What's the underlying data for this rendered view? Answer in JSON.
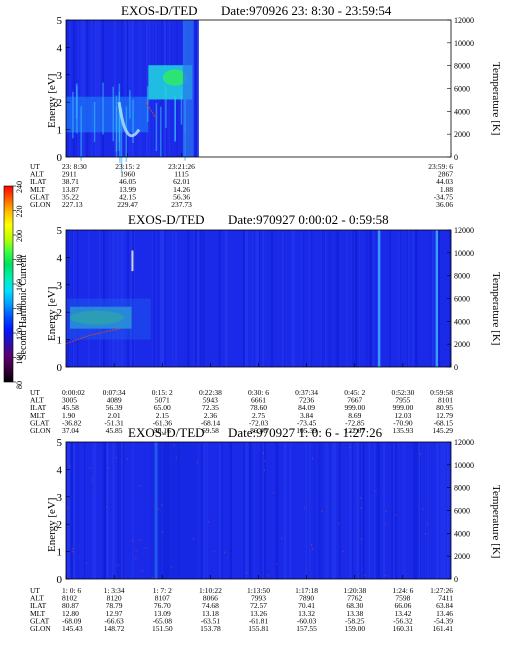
{
  "colorbar": {
    "label": "Second Harmonic Current",
    "ticks": [
      "80",
      "100",
      "120",
      "140",
      "160",
      "180",
      "200",
      "220",
      "240"
    ],
    "stops": [
      "#000000",
      "#3a003a",
      "#5a0070",
      "#2a10b0",
      "#0018ff",
      "#0050ff",
      "#00a0ff",
      "#00e0ff",
      "#00f0b0",
      "#00e060",
      "#40ff40",
      "#c0ff00",
      "#ffff00",
      "#ffc000",
      "#ff6000",
      "#ff0000"
    ]
  },
  "chart_data": [
    {
      "type": "heatmap",
      "title_left": "EXOS-D/TED",
      "title_right": "Date:970926  23: 8:30 - 23:59:54",
      "ylabel": "Energy [eV]",
      "ylim": [
        0,
        5
      ],
      "yticks": [
        "0",
        "1",
        "2",
        "3",
        "4",
        "5"
      ],
      "y2label": "Temperature [K]",
      "y2lim": [
        0,
        12000
      ],
      "y2ticks": [
        "0",
        "2000",
        "4000",
        "6000",
        "8000",
        "10000",
        "12000"
      ],
      "data_end_fraction": 0.345,
      "row_names": [
        "UT",
        "ALT",
        "ILAT",
        "MLT",
        "GLAT",
        "GLON"
      ],
      "columns": [
        {
          "UT": "23: 8:30",
          "ALT": "2911",
          "ILAT": "38.71",
          "MLT": "13.87",
          "GLAT": "35.22",
          "GLON": "227.13"
        },
        {
          "UT": "23:15: 2",
          "ALT": "1960",
          "ILAT": "46.05",
          "MLT": "13.99",
          "GLAT": "42.15",
          "GLON": "229.47"
        },
        {
          "UT": "23:21:26",
          "ALT": "1115",
          "ILAT": "62.01",
          "MLT": "14.26",
          "GLAT": "56.36",
          "GLON": "237.73"
        },
        {
          "UT": "23:59: 6",
          "ALT": "2867",
          "ILAT": "44.03",
          "MLT": "1.88",
          "GLAT": "-34.75",
          "GLON": "36.06"
        }
      ],
      "column_fractions": [
        0,
        0.16,
        0.3,
        1.0
      ]
    },
    {
      "type": "heatmap",
      "title_left": "EXOS-D/TED",
      "title_right": "Date:970927  0:00:02 - 0:59:58",
      "ylabel": "Energy [eV]",
      "ylim": [
        0,
        5
      ],
      "yticks": [
        "0",
        "1",
        "2",
        "3",
        "4",
        "5"
      ],
      "y2label": "Temperature [K]",
      "y2lim": [
        0,
        12000
      ],
      "y2ticks": [
        "0",
        "2000",
        "4000",
        "6000",
        "8000",
        "10000",
        "12000"
      ],
      "data_end_fraction": 1.0,
      "row_names": [
        "UT",
        "ALT",
        "ILAT",
        "MLT",
        "GLAT",
        "GLON"
      ],
      "columns": [
        {
          "UT": "0:00:02",
          "ALT": "3005",
          "ILAT": "45.58",
          "MLT": "1.90",
          "GLAT": "-36.82",
          "GLON": "37.04"
        },
        {
          "UT": "0:07:34",
          "ALT": "4089",
          "ILAT": "56.39",
          "MLT": "2.01",
          "GLAT": "-51.31",
          "GLON": "45.85"
        },
        {
          "UT": "0:15: 2",
          "ALT": "5071",
          "ILAT": "65.00",
          "MLT": "2.15",
          "GLAT": "-61.36",
          "GLON": "56.16"
        },
        {
          "UT": "0:22:38",
          "ALT": "5943",
          "ILAT": "72.35",
          "MLT": "2.36",
          "GLAT": "-68.14",
          "GLON": "69.58"
        },
        {
          "UT": "0:30: 6",
          "ALT": "6661",
          "ILAT": "78.60",
          "MLT": "2.75",
          "GLAT": "-72.03",
          "GLON": "86.46"
        },
        {
          "UT": "0:37:34",
          "ALT": "7236",
          "ILAT": "84.09",
          "MLT": "3.84",
          "GLAT": "-73.45",
          "GLON": "105.39"
        },
        {
          "UT": "0:45: 2",
          "ALT": "7667",
          "ILAT": "999.00",
          "MLT": "8.69",
          "GLAT": "-72.85",
          "GLON": "122.67"
        },
        {
          "UT": "0:52:30",
          "ALT": "7955",
          "ILAT": "999.00",
          "MLT": "12.03",
          "GLAT": "-70.90",
          "GLON": "135.93"
        },
        {
          "UT": "0:59:58",
          "ALT": "8101",
          "ILAT": "80.95",
          "MLT": "12.79",
          "GLAT": "-68.15",
          "GLON": "145.29"
        }
      ],
      "column_fractions": [
        0,
        0.125,
        0.25,
        0.375,
        0.5,
        0.625,
        0.75,
        0.875,
        1.0
      ]
    },
    {
      "type": "heatmap",
      "title_left": "EXOS-D/TED",
      "title_right": "Date:970927  1: 0: 6 - 1:27:26",
      "ylabel": "Energy [eV]",
      "ylim": [
        0,
        5
      ],
      "yticks": [
        "0",
        "1",
        "2",
        "3",
        "4",
        "5"
      ],
      "y2label": "Temperature [K]",
      "y2lim": [
        0,
        12000
      ],
      "y2ticks": [
        "0",
        "2000",
        "4000",
        "6000",
        "8000",
        "10000",
        "12000"
      ],
      "data_end_fraction": 1.0,
      "row_names": [
        "UT",
        "ALT",
        "ILAT",
        "MLT",
        "GLAT",
        "GLON"
      ],
      "columns": [
        {
          "UT": "1: 0: 6",
          "ALT": "8102",
          "ILAT": "80.87",
          "MLT": "12.80",
          "GLAT": "-68.09",
          "GLON": "145.43"
        },
        {
          "UT": "1: 3:34",
          "ALT": "8120",
          "ILAT": "78.79",
          "MLT": "12.97",
          "GLAT": "-66.63",
          "GLON": "148.72"
        },
        {
          "UT": "1: 7: 2",
          "ALT": "8107",
          "ILAT": "76.70",
          "MLT": "13.09",
          "GLAT": "-65.08",
          "GLON": "151.50"
        },
        {
          "UT": "1:10:22",
          "ALT": "8066",
          "ILAT": "74.68",
          "MLT": "13.18",
          "GLAT": "-63.51",
          "GLON": "153.78"
        },
        {
          "UT": "1:13:50",
          "ALT": "7993",
          "ILAT": "72.57",
          "MLT": "13.26",
          "GLAT": "-61.81",
          "GLON": "155.81"
        },
        {
          "UT": "1:17:18",
          "ALT": "7890",
          "ILAT": "70.41",
          "MLT": "13.32",
          "GLAT": "-60.03",
          "GLON": "157.55"
        },
        {
          "UT": "1:20:38",
          "ALT": "7762",
          "ILAT": "68.30",
          "MLT": "13.38",
          "GLAT": "-58.25",
          "GLON": "159.00"
        },
        {
          "UT": "1:24: 6",
          "ALT": "7598",
          "ILAT": "66.06",
          "MLT": "13.42",
          "GLAT": "-56.32",
          "GLON": "160.31"
        },
        {
          "UT": "1:27:26",
          "ALT": "7411",
          "ILAT": "63.84",
          "MLT": "13.46",
          "GLAT": "-54.39",
          "GLON": "161.41"
        }
      ],
      "column_fractions": [
        0,
        0.125,
        0.25,
        0.375,
        0.5,
        0.625,
        0.75,
        0.875,
        1.0
      ]
    }
  ]
}
